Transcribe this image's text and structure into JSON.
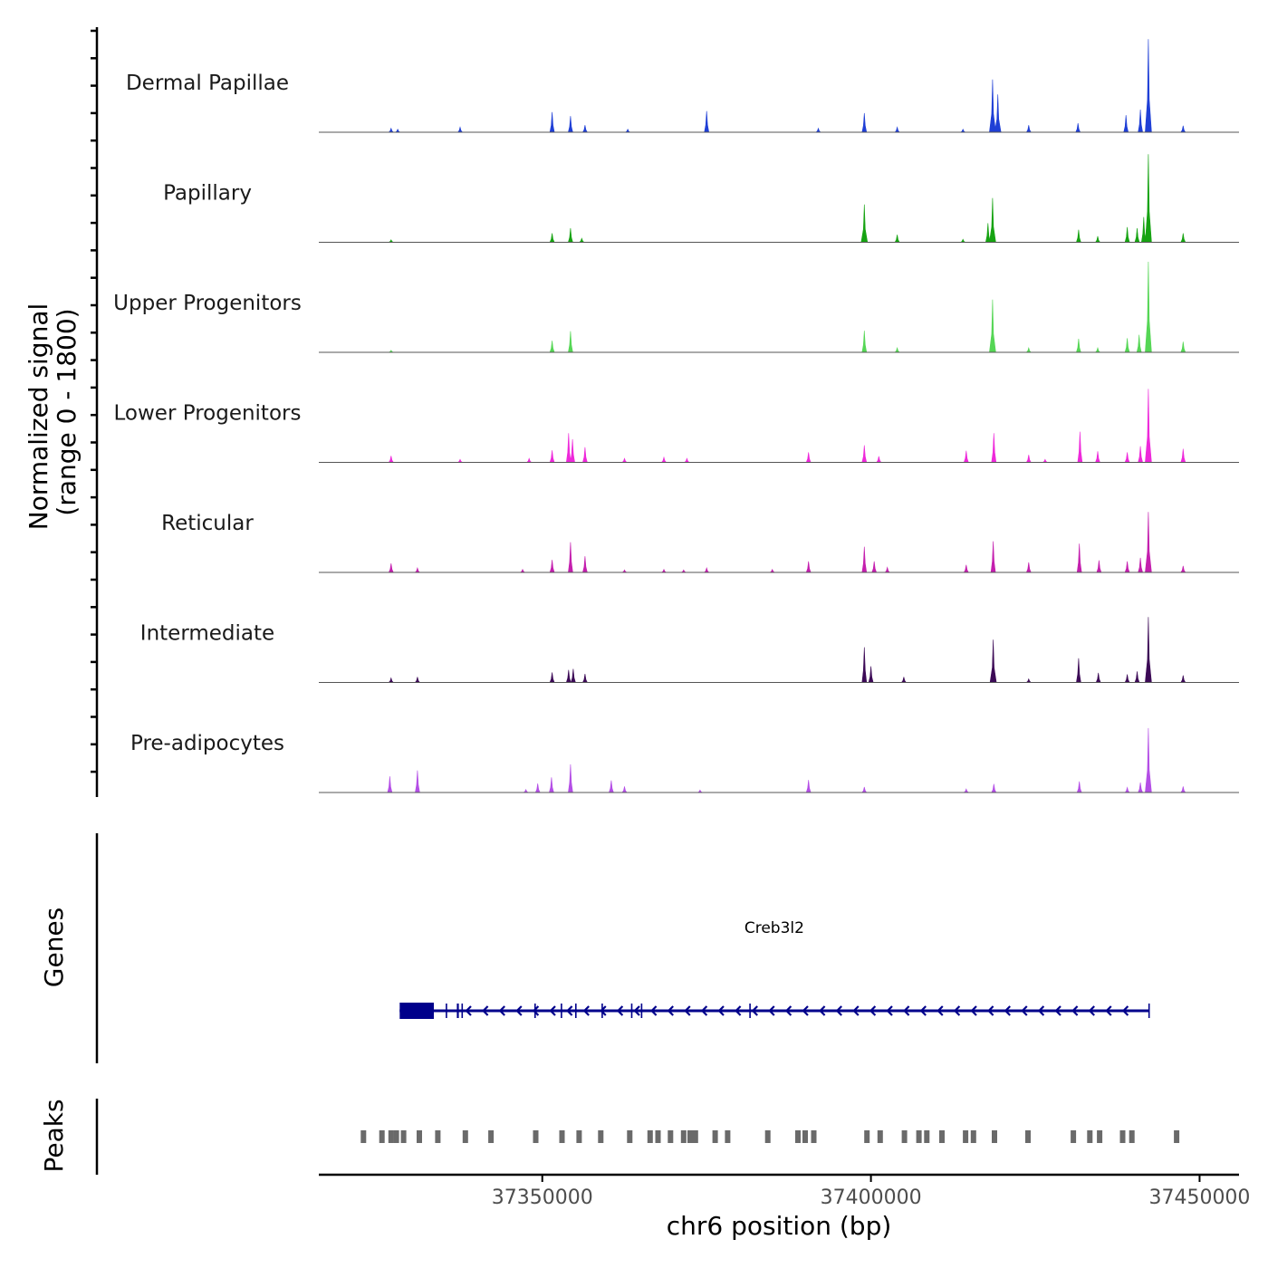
{
  "chart_data": {
    "type": "area",
    "title": "",
    "ylabel_line1": "Normalized signal",
    "ylabel_line2": "(range 0 - 1800)",
    "yrange": [
      0,
      1800
    ],
    "xlabel": "chr6 position (bp)",
    "xlim": [
      37316000,
      37456000
    ],
    "xticks": [
      37350000,
      37400000,
      37450000
    ],
    "xtick_labels": [
      "37350000",
      "37400000",
      "37450000"
    ],
    "tracks": [
      {
        "name": "Dermal Papillae",
        "color": "#1f3fd6",
        "peaks": [
          [
            37327000,
            80
          ],
          [
            37328000,
            60
          ],
          [
            37337500,
            100
          ],
          [
            37351500,
            400
          ],
          [
            37354300,
            320
          ],
          [
            37356500,
            140
          ],
          [
            37363000,
            60
          ],
          [
            37375000,
            420
          ],
          [
            37392000,
            80
          ],
          [
            37399000,
            380
          ],
          [
            37404000,
            100
          ],
          [
            37414000,
            60
          ],
          [
            37418500,
            1050
          ],
          [
            37419300,
            750
          ],
          [
            37424000,
            140
          ],
          [
            37431500,
            180
          ],
          [
            37438800,
            340
          ],
          [
            37441000,
            450
          ],
          [
            37442200,
            1850
          ],
          [
            37447500,
            130
          ]
        ]
      },
      {
        "name": "Papillary",
        "color": "#16a312",
        "peaks": [
          [
            37327000,
            50
          ],
          [
            37351500,
            180
          ],
          [
            37354300,
            280
          ],
          [
            37356000,
            80
          ],
          [
            37399000,
            750
          ],
          [
            37404000,
            150
          ],
          [
            37414000,
            60
          ],
          [
            37417800,
            380
          ],
          [
            37418500,
            880
          ],
          [
            37431600,
            250
          ],
          [
            37434500,
            120
          ],
          [
            37439000,
            300
          ],
          [
            37440500,
            280
          ],
          [
            37441500,
            500
          ],
          [
            37442200,
            1750
          ],
          [
            37447500,
            180
          ]
        ]
      },
      {
        "name": "Upper Progenitors",
        "color": "#55d655",
        "peaks": [
          [
            37327000,
            40
          ],
          [
            37351500,
            230
          ],
          [
            37354300,
            420
          ],
          [
            37399000,
            430
          ],
          [
            37404000,
            90
          ],
          [
            37418500,
            1050
          ],
          [
            37424000,
            90
          ],
          [
            37431600,
            270
          ],
          [
            37434500,
            90
          ],
          [
            37439000,
            280
          ],
          [
            37440800,
            350
          ],
          [
            37442200,
            1800
          ],
          [
            37447500,
            210
          ]
        ]
      },
      {
        "name": "Lower Progenitors",
        "color": "#ee28da",
        "peaks": [
          [
            37327000,
            130
          ],
          [
            37337500,
            60
          ],
          [
            37348000,
            80
          ],
          [
            37351500,
            240
          ],
          [
            37354000,
            580
          ],
          [
            37354600,
            460
          ],
          [
            37356500,
            300
          ],
          [
            37362500,
            80
          ],
          [
            37368500,
            100
          ],
          [
            37372000,
            80
          ],
          [
            37390500,
            200
          ],
          [
            37399000,
            340
          ],
          [
            37401200,
            120
          ],
          [
            37414500,
            230
          ],
          [
            37418700,
            580
          ],
          [
            37424000,
            150
          ],
          [
            37426500,
            60
          ],
          [
            37431800,
            610
          ],
          [
            37434500,
            220
          ],
          [
            37439000,
            200
          ],
          [
            37441000,
            320
          ],
          [
            37442200,
            1460
          ],
          [
            37447500,
            270
          ]
        ]
      },
      {
        "name": "Reticular",
        "color": "#c41fae",
        "peaks": [
          [
            37327000,
            180
          ],
          [
            37331000,
            90
          ],
          [
            37347000,
            60
          ],
          [
            37351500,
            250
          ],
          [
            37354300,
            600
          ],
          [
            37356500,
            320
          ],
          [
            37362500,
            50
          ],
          [
            37368500,
            60
          ],
          [
            37371500,
            50
          ],
          [
            37375000,
            90
          ],
          [
            37385000,
            60
          ],
          [
            37390500,
            220
          ],
          [
            37399000,
            510
          ],
          [
            37400500,
            220
          ],
          [
            37402500,
            100
          ],
          [
            37414500,
            150
          ],
          [
            37418600,
            620
          ],
          [
            37424000,
            200
          ],
          [
            37431700,
            570
          ],
          [
            37434700,
            240
          ],
          [
            37439000,
            220
          ],
          [
            37441000,
            290
          ],
          [
            37442200,
            1200
          ],
          [
            37447500,
            130
          ]
        ]
      },
      {
        "name": "Intermediate",
        "color": "#3c0a56",
        "peaks": [
          [
            37327000,
            90
          ],
          [
            37331000,
            110
          ],
          [
            37351500,
            200
          ],
          [
            37354000,
            250
          ],
          [
            37354700,
            270
          ],
          [
            37356500,
            170
          ],
          [
            37399000,
            700
          ],
          [
            37400000,
            320
          ],
          [
            37405000,
            110
          ],
          [
            37418600,
            850
          ],
          [
            37424000,
            70
          ],
          [
            37431600,
            480
          ],
          [
            37434600,
            190
          ],
          [
            37439000,
            160
          ],
          [
            37440500,
            220
          ],
          [
            37442200,
            1300
          ],
          [
            37447500,
            140
          ]
        ]
      },
      {
        "name": "Pre-adipocytes",
        "color": "#b44ee6",
        "peaks": [
          [
            37326800,
            320
          ],
          [
            37331000,
            440
          ],
          [
            37347500,
            60
          ],
          [
            37349300,
            180
          ],
          [
            37351400,
            300
          ],
          [
            37354300,
            560
          ],
          [
            37360500,
            240
          ],
          [
            37362500,
            120
          ],
          [
            37374000,
            50
          ],
          [
            37390500,
            250
          ],
          [
            37399000,
            110
          ],
          [
            37414500,
            70
          ],
          [
            37418700,
            170
          ],
          [
            37431700,
            220
          ],
          [
            37439000,
            100
          ],
          [
            37441000,
            200
          ],
          [
            37442200,
            1280
          ],
          [
            37447500,
            120
          ]
        ]
      }
    ],
    "gene_track_title": "Genes",
    "gene": {
      "name": "Creb3l2",
      "strand": "-",
      "start": 37328300,
      "end": 37442300,
      "exons": [
        [
          37328300,
          37333500
        ],
        [
          37335300,
          37335500
        ],
        [
          37337000,
          37337300
        ],
        [
          37337700,
          37337900
        ],
        [
          37348800,
          37348900
        ],
        [
          37352800,
          37352900
        ],
        [
          37355000,
          37355200
        ],
        [
          37359000,
          37359100
        ],
        [
          37363500,
          37363700
        ],
        [
          37365000,
          37365200
        ],
        [
          37381500,
          37381600
        ],
        [
          37442200,
          37442300
        ]
      ]
    },
    "peak_track_title": "Peaks",
    "peak_regions": [
      37322800,
      37325600,
      37327000,
      37327800,
      37328900,
      37331300,
      37334100,
      37338300,
      37342200,
      37349000,
      37353000,
      37355600,
      37358900,
      37363300,
      37366400,
      37367600,
      37369500,
      37371500,
      37372500,
      37373300,
      37376300,
      37378200,
      37384300,
      37388900,
      37390000,
      37391300,
      37399400,
      37401400,
      37405100,
      37407300,
      37408500,
      37410800,
      37414400,
      37415600,
      37418800,
      37423900,
      37430800,
      37433300,
      37434800,
      37438300,
      37439700,
      37446500
    ]
  }
}
